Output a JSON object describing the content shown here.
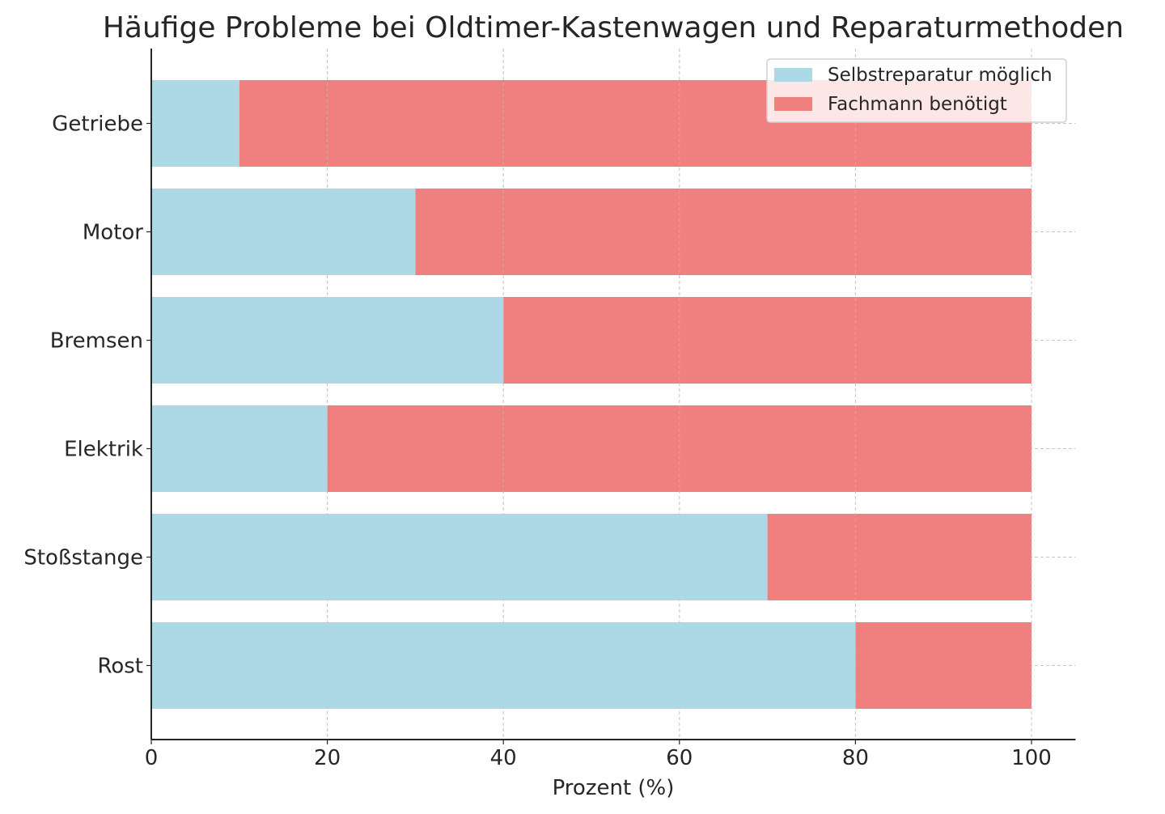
{
  "chart_data": {
    "type": "bar",
    "orientation": "horizontal",
    "stacked": true,
    "title": "Häufige Probleme bei Oldtimer-Kastenwagen und Reparaturmethoden",
    "xlabel": "Prozent (%)",
    "ylabel": "",
    "xlim": [
      0,
      105
    ],
    "xticks": [
      "0",
      "20",
      "40",
      "60",
      "80",
      "100"
    ],
    "grid": true,
    "legend_position": "top-right",
    "categories": [
      "Getriebe",
      "Motor",
      "Bremsen",
      "Elektrik",
      "Stoßstange",
      "Rost"
    ],
    "series": [
      {
        "name": "Selbstreparatur möglich",
        "color": "#ADD8E6",
        "values": [
          10,
          30,
          40,
          20,
          70,
          80
        ]
      },
      {
        "name": "Fachmann benötigt",
        "color": "#F08080",
        "values": [
          90,
          70,
          60,
          80,
          30,
          20
        ]
      }
    ]
  }
}
